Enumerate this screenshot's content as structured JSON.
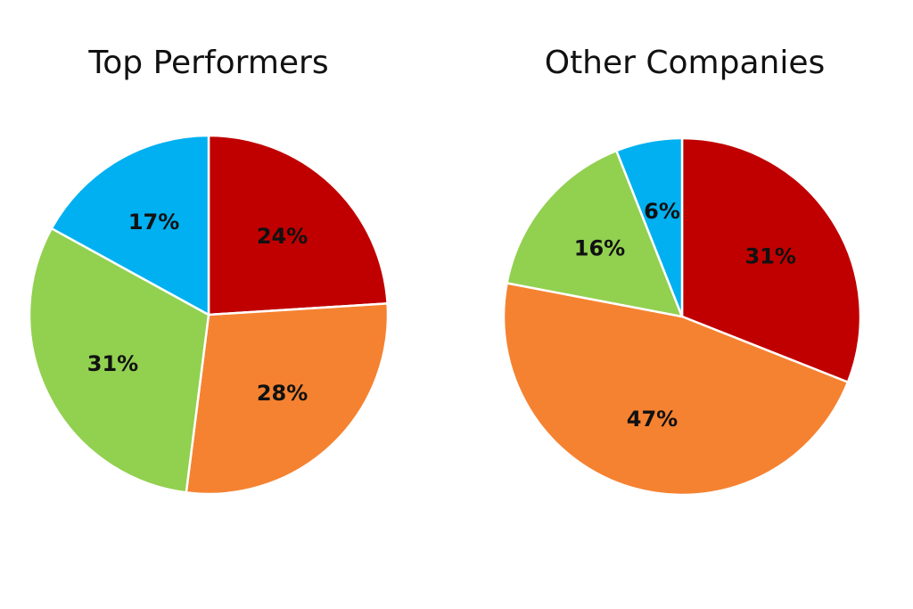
{
  "chart_data": [
    {
      "type": "pie",
      "title": "Top Performers",
      "slices": [
        {
          "value": 24,
          "label": "24%",
          "color": "#c00000"
        },
        {
          "value": 28,
          "label": "28%",
          "color": "#f58231"
        },
        {
          "value": 31,
          "label": "31%",
          "color": "#92d050"
        },
        {
          "value": 17,
          "label": "17%",
          "color": "#00b0f0"
        }
      ]
    },
    {
      "type": "pie",
      "title": "Other Companies",
      "slices": [
        {
          "value": 31,
          "label": "31%",
          "color": "#c00000"
        },
        {
          "value": 47,
          "label": "47%",
          "color": "#f58231"
        },
        {
          "value": 16,
          "label": "16%",
          "color": "#92d050"
        },
        {
          "value": 6,
          "label": "6%",
          "color": "#00b0f0"
        }
      ]
    }
  ]
}
